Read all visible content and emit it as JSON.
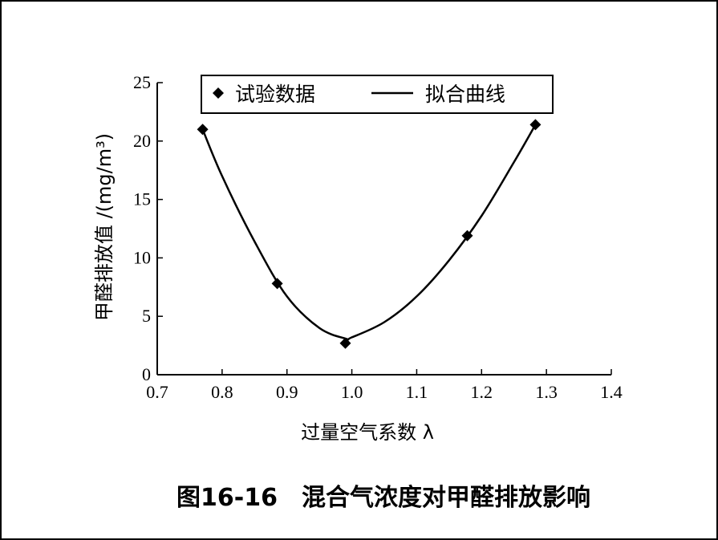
{
  "chart_data": {
    "type": "scatter",
    "caption_number": "图16-16",
    "caption_title": "混合气浓度对甲醛排放影响",
    "xlabel": "过量空气系数 λ",
    "ylabel": "甲醛排放值 /(mg/m³)",
    "xlim": [
      0.7,
      1.4
    ],
    "ylim": [
      0,
      25
    ],
    "x_ticks": [
      "0.7",
      "0.8",
      "0.9",
      "1.0",
      "1.1",
      "1.2",
      "1.3",
      "1.4"
    ],
    "y_ticks": [
      "0",
      "5",
      "10",
      "15",
      "20",
      "25"
    ],
    "grid": false,
    "legend_position": "top",
    "series": [
      {
        "name": "试验数据",
        "kind": "points",
        "marker": "diamond",
        "x": [
          0.77,
          0.885,
          0.99,
          1.178,
          1.283
        ],
        "y": [
          21.0,
          7.8,
          2.7,
          11.9,
          21.4
        ]
      },
      {
        "name": "拟合曲线",
        "kind": "line",
        "x": [
          0.77,
          0.8,
          0.85,
          0.9,
          0.95,
          0.99,
          1.0,
          1.05,
          1.1,
          1.15,
          1.2,
          1.25,
          1.283
        ],
        "y": [
          21.0,
          17.0,
          11.4,
          6.7,
          4.0,
          3.1,
          3.2,
          4.5,
          6.7,
          9.8,
          13.6,
          18.2,
          21.4
        ]
      }
    ]
  }
}
